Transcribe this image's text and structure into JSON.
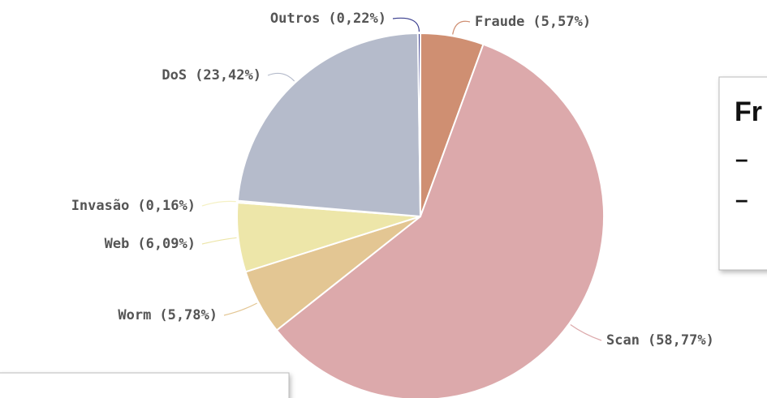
{
  "chart_data": {
    "type": "pie",
    "categories": [
      "Fraude",
      "Scan",
      "Worm",
      "Web",
      "Invasão",
      "DoS",
      "Outros"
    ],
    "values": [
      5.57,
      58.77,
      5.78,
      6.09,
      0.16,
      23.42,
      0.22
    ],
    "value_labels": [
      "(5,57%)",
      "(58,77%)",
      "(5,78%)",
      "(6,09%)",
      "(0,16%)",
      "(23,42%)",
      "(0,22%)"
    ],
    "colors": [
      "#cf8f72",
      "#dca9ab",
      "#e3c693",
      "#ede6a9",
      "#f5f1c4",
      "#b5bbcb",
      "#3b3f8f"
    ]
  },
  "side_box": {
    "title": "Fr",
    "items": [
      "–",
      "–"
    ]
  }
}
